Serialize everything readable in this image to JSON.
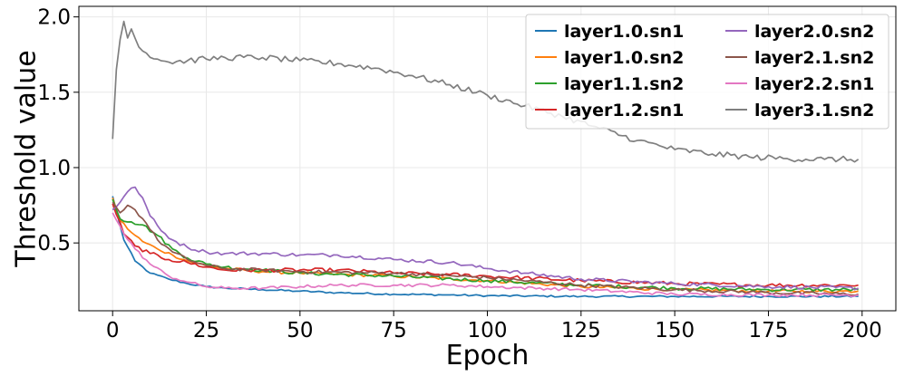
{
  "chart_data": {
    "type": "line",
    "xlabel": "Epoch",
    "ylabel": "Threshold value",
    "xlim": [
      -9,
      209
    ],
    "ylim": [
      0.05,
      2.07
    ],
    "xticks": [
      0,
      25,
      50,
      75,
      100,
      125,
      150,
      175,
      200
    ],
    "yticks": [
      0.5,
      1.0,
      1.5,
      2.0
    ],
    "xtick_labels": [
      "0",
      "25",
      "50",
      "75",
      "100",
      "125",
      "150",
      "175",
      "200"
    ],
    "ytick_labels": [
      "0.5",
      "1.0",
      "1.5",
      "2.0"
    ],
    "grid": true,
    "legend_position": "top-right",
    "legend_columns": 2,
    "series": [
      {
        "name": "layer1.0.sn1",
        "color": "#1f77b4",
        "points": [
          [
            0,
            0.81
          ],
          [
            3,
            0.52
          ],
          [
            6,
            0.38
          ],
          [
            10,
            0.3
          ],
          [
            15,
            0.26
          ],
          [
            20,
            0.23
          ],
          [
            25,
            0.21
          ],
          [
            30,
            0.2
          ],
          [
            40,
            0.19
          ],
          [
            50,
            0.18
          ],
          [
            60,
            0.17
          ],
          [
            75,
            0.16
          ],
          [
            90,
            0.155
          ],
          [
            100,
            0.15
          ],
          [
            125,
            0.145
          ],
          [
            150,
            0.145
          ],
          [
            175,
            0.145
          ],
          [
            199,
            0.145
          ]
        ],
        "noise": 0.006
      },
      {
        "name": "layer1.0.sn2",
        "color": "#ff7f0e",
        "points": [
          [
            0,
            0.8
          ],
          [
            2,
            0.65
          ],
          [
            5,
            0.57
          ],
          [
            8,
            0.51
          ],
          [
            12,
            0.46
          ],
          [
            16,
            0.42
          ],
          [
            20,
            0.38
          ],
          [
            25,
            0.35
          ],
          [
            30,
            0.33
          ],
          [
            40,
            0.31
          ],
          [
            50,
            0.3
          ],
          [
            75,
            0.28
          ],
          [
            100,
            0.25
          ],
          [
            125,
            0.21
          ],
          [
            150,
            0.19
          ],
          [
            175,
            0.18
          ],
          [
            199,
            0.18
          ]
        ],
        "noise": 0.01
      },
      {
        "name": "layer1.1.sn2",
        "color": "#2ca02c",
        "points": [
          [
            0,
            0.79
          ],
          [
            2,
            0.66
          ],
          [
            5,
            0.64
          ],
          [
            8,
            0.62
          ],
          [
            12,
            0.55
          ],
          [
            16,
            0.46
          ],
          [
            20,
            0.4
          ],
          [
            25,
            0.36
          ],
          [
            30,
            0.34
          ],
          [
            40,
            0.32
          ],
          [
            50,
            0.3
          ],
          [
            75,
            0.28
          ],
          [
            100,
            0.25
          ],
          [
            125,
            0.22
          ],
          [
            150,
            0.2
          ],
          [
            175,
            0.19
          ],
          [
            199,
            0.19
          ]
        ],
        "noise": 0.012
      },
      {
        "name": "layer1.2.sn1",
        "color": "#d62728",
        "points": [
          [
            0,
            0.76
          ],
          [
            3,
            0.56
          ],
          [
            6,
            0.48
          ],
          [
            10,
            0.43
          ],
          [
            15,
            0.39
          ],
          [
            20,
            0.37
          ],
          [
            25,
            0.34
          ],
          [
            30,
            0.32
          ],
          [
            40,
            0.32
          ],
          [
            50,
            0.32
          ],
          [
            60,
            0.32
          ],
          [
            75,
            0.3
          ],
          [
            90,
            0.29
          ],
          [
            100,
            0.28
          ],
          [
            125,
            0.25
          ],
          [
            150,
            0.23
          ],
          [
            175,
            0.22
          ],
          [
            199,
            0.22
          ]
        ],
        "noise": 0.013
      },
      {
        "name": "layer2.0.sn2",
        "color": "#9467bd",
        "points": [
          [
            0,
            0.72
          ],
          [
            2,
            0.77
          ],
          [
            4,
            0.84
          ],
          [
            6,
            0.87
          ],
          [
            8,
            0.8
          ],
          [
            10,
            0.68
          ],
          [
            13,
            0.58
          ],
          [
            16,
            0.52
          ],
          [
            20,
            0.47
          ],
          [
            25,
            0.44
          ],
          [
            30,
            0.43
          ],
          [
            40,
            0.43
          ],
          [
            50,
            0.42
          ],
          [
            60,
            0.42
          ],
          [
            75,
            0.39
          ],
          [
            90,
            0.37
          ],
          [
            100,
            0.33
          ],
          [
            110,
            0.3
          ],
          [
            125,
            0.26
          ],
          [
            150,
            0.23
          ],
          [
            175,
            0.21
          ],
          [
            199,
            0.2
          ]
        ],
        "noise": 0.012
      },
      {
        "name": "layer2.1.sn2",
        "color": "#8c564b",
        "points": [
          [
            0,
            0.77
          ],
          [
            2,
            0.7
          ],
          [
            4,
            0.75
          ],
          [
            6,
            0.72
          ],
          [
            9,
            0.63
          ],
          [
            12,
            0.52
          ],
          [
            16,
            0.44
          ],
          [
            20,
            0.39
          ],
          [
            25,
            0.35
          ],
          [
            30,
            0.33
          ],
          [
            40,
            0.32
          ],
          [
            50,
            0.31
          ],
          [
            75,
            0.3
          ],
          [
            100,
            0.27
          ],
          [
            125,
            0.22
          ],
          [
            150,
            0.19
          ],
          [
            175,
            0.17
          ],
          [
            199,
            0.16
          ]
        ],
        "noise": 0.011
      },
      {
        "name": "layer2.2.sn1",
        "color": "#e377c2",
        "points": [
          [
            0,
            0.7
          ],
          [
            3,
            0.56
          ],
          [
            6,
            0.46
          ],
          [
            10,
            0.36
          ],
          [
            15,
            0.28
          ],
          [
            20,
            0.24
          ],
          [
            25,
            0.21
          ],
          [
            30,
            0.2
          ],
          [
            40,
            0.2
          ],
          [
            50,
            0.21
          ],
          [
            60,
            0.22
          ],
          [
            75,
            0.22
          ],
          [
            90,
            0.22
          ],
          [
            100,
            0.21
          ],
          [
            125,
            0.19
          ],
          [
            150,
            0.16
          ],
          [
            175,
            0.155
          ],
          [
            199,
            0.155
          ]
        ],
        "noise": 0.01
      },
      {
        "name": "layer3.1.sn2",
        "color": "#7f7f7f",
        "points": [
          [
            0,
            1.19
          ],
          [
            1,
            1.65
          ],
          [
            2,
            1.85
          ],
          [
            3,
            1.97
          ],
          [
            4,
            1.86
          ],
          [
            5,
            1.92
          ],
          [
            7,
            1.8
          ],
          [
            9,
            1.76
          ],
          [
            12,
            1.72
          ],
          [
            15,
            1.7
          ],
          [
            20,
            1.71
          ],
          [
            25,
            1.72
          ],
          [
            30,
            1.73
          ],
          [
            40,
            1.73
          ],
          [
            50,
            1.71
          ],
          [
            60,
            1.69
          ],
          [
            70,
            1.66
          ],
          [
            80,
            1.61
          ],
          [
            90,
            1.55
          ],
          [
            100,
            1.48
          ],
          [
            110,
            1.41
          ],
          [
            120,
            1.34
          ],
          [
            130,
            1.26
          ],
          [
            140,
            1.18
          ],
          [
            150,
            1.12
          ],
          [
            160,
            1.09
          ],
          [
            170,
            1.07
          ],
          [
            180,
            1.06
          ],
          [
            190,
            1.055
          ],
          [
            199,
            1.055
          ]
        ],
        "noise": 0.02
      }
    ]
  }
}
